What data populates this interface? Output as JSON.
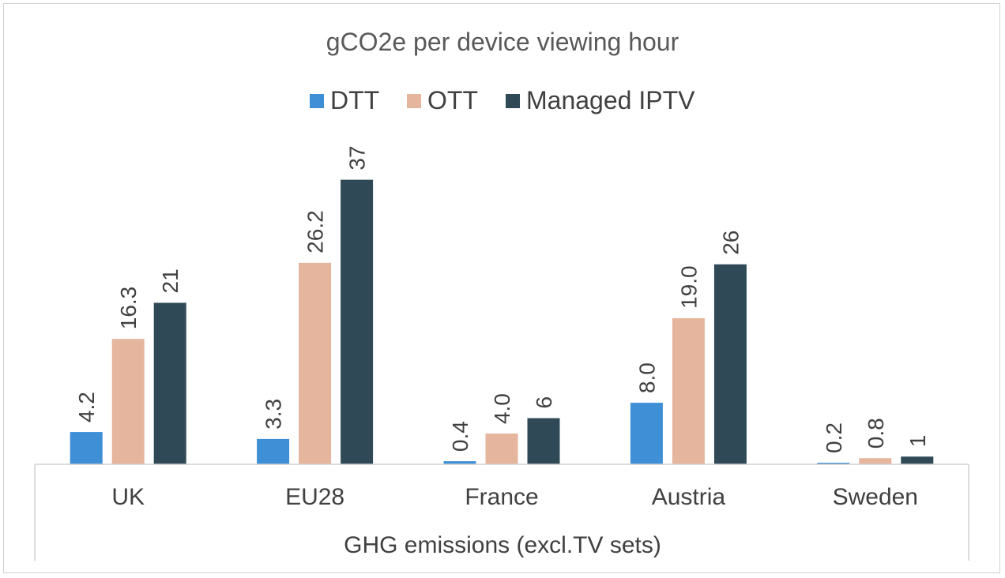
{
  "colors": {
    "DTT": "#3f8fd6",
    "OTT": "#e6b59d",
    "Managed IPTV": "#2f4a56",
    "axis": "#d0d0d0",
    "frame": "#d0d0d0"
  },
  "chart_data": {
    "type": "bar",
    "title": "gCO2e per device viewing hour",
    "xlabel": "GHG emissions (excl.TV sets)",
    "ylabel": "",
    "legend_position": "top",
    "grid": false,
    "ylim": [
      0,
      38
    ],
    "categories": [
      "UK",
      "EU28",
      "France",
      "Austria",
      "Sweden"
    ],
    "series": [
      {
        "name": "DTT",
        "values": [
          4.2,
          3.3,
          0.4,
          8.0,
          0.2
        ],
        "labels": [
          "4.2",
          "3.3",
          "0.4",
          "8.0",
          "0.2"
        ]
      },
      {
        "name": "OTT",
        "values": [
          16.3,
          26.2,
          4.0,
          19.0,
          0.8
        ],
        "labels": [
          "16.3",
          "26.2",
          "4.0",
          "19.0",
          "0.8"
        ]
      },
      {
        "name": "Managed IPTV",
        "values": [
          21,
          37,
          6,
          26,
          1
        ],
        "labels": [
          "21",
          "37",
          "6",
          "26",
          "1"
        ]
      }
    ]
  }
}
